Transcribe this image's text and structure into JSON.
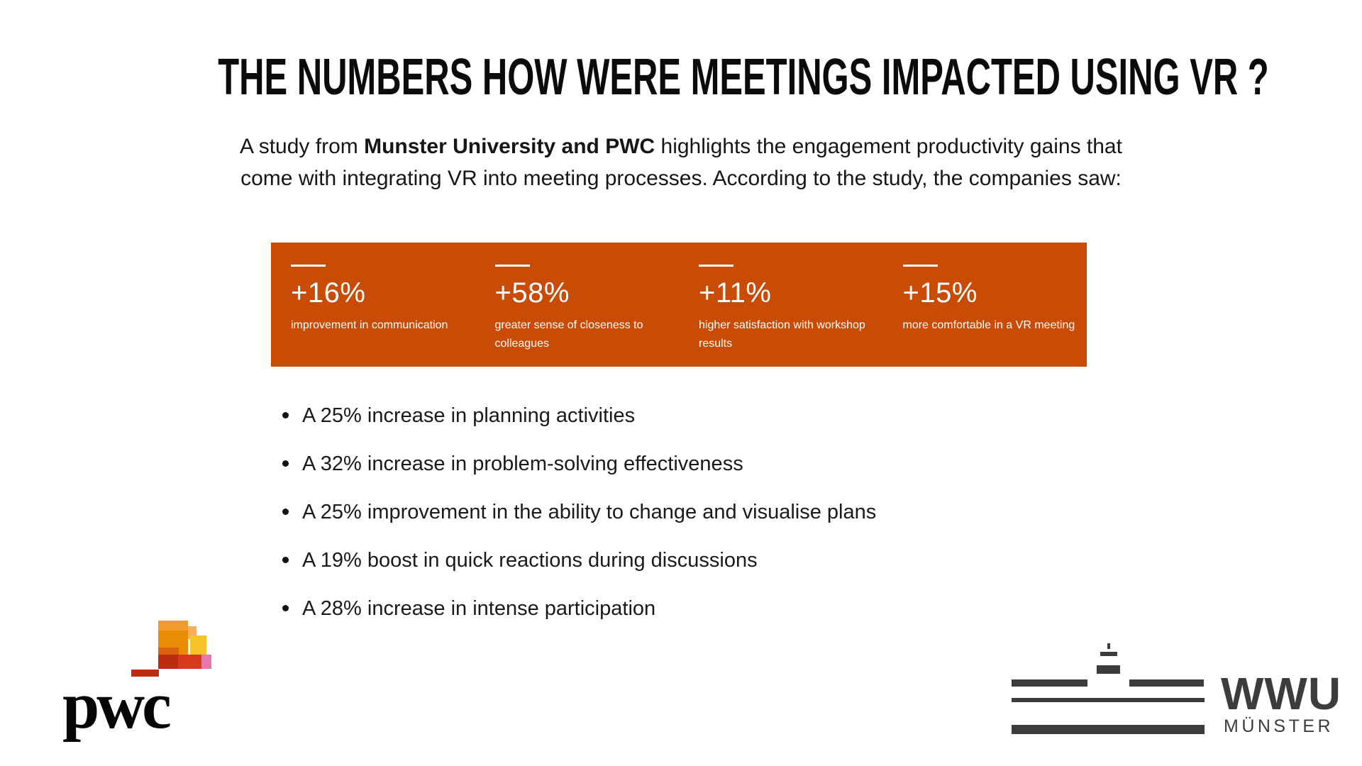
{
  "header": {
    "title": "THE NUMBERS HOW WERE MEETINGS IMPACTED USING VR ?"
  },
  "intro": {
    "line1_prefix": "A study from ",
    "line1_bold": "Munster University and PWC",
    "line1_suffix": " highlights the engagement productivity gains that",
    "line2": "come with integrating VR into meeting processes. According to the study, the companies saw:"
  },
  "stats_banner": {
    "background_color": "#C84B06",
    "text_color": "#FFFFFF",
    "stats": [
      {
        "value": "+16%",
        "caption": "improvement in communication"
      },
      {
        "value": "+58%",
        "caption": "greater sense of closeness to colleagues"
      },
      {
        "value": "+11%",
        "caption": "higher satisfaction with workshop results"
      },
      {
        "value": "+15%",
        "caption": "more comfortable in a VR meeting"
      }
    ]
  },
  "findings": {
    "items": [
      "A 25% increase in planning activities",
      "A 32% increase in problem-solving effectiveness",
      "A 25% improvement in the ability to change and visualise plans",
      "A 19% boost in quick reactions during discussions",
      "A 28% increase in intense participation"
    ]
  },
  "logos": {
    "pwc": {
      "wordmark": "pwc",
      "colors": {
        "orange_light": "#F09B2F",
        "orange": "#E88C04",
        "orange_pale": "#F4AE5C",
        "yellow": "#F6C32B",
        "dark_orange": "#D96111",
        "red": "#D8391C",
        "dark_red": "#BC2B10",
        "pink": "#E877AE",
        "bar_red": "#BF2B0E"
      }
    },
    "wwu": {
      "acronym": "WWU",
      "city": "MÜNSTER",
      "color": "#3C3C3B"
    }
  }
}
